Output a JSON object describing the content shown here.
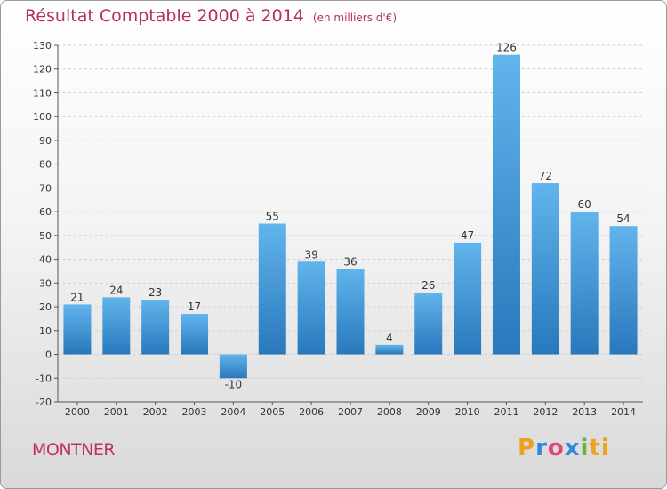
{
  "header": {
    "title": "Résultat Comptable 2000 à 2014",
    "unit": "(en milliers d'€)"
  },
  "footer": {
    "commune": "MONTNER",
    "logo_text": "Proxiti",
    "logo_letters": [
      "P",
      "r",
      "o",
      "x",
      "i",
      "ti"
    ]
  },
  "colors": {
    "title": "#b5305c",
    "bar_light": "#62b4ec",
    "bar_dark": "#2878bc",
    "grid": "#cfcfcf"
  },
  "chart_data": {
    "type": "bar",
    "title": "Résultat Comptable 2000 à 2014 (en milliers d'€)",
    "xlabel": "",
    "ylabel": "",
    "categories": [
      "2000",
      "2001",
      "2002",
      "2003",
      "2004",
      "2005",
      "2006",
      "2007",
      "2008",
      "2009",
      "2010",
      "2011",
      "2012",
      "2013",
      "2014"
    ],
    "values": [
      21,
      24,
      23,
      17,
      -10,
      55,
      39,
      36,
      4,
      26,
      47,
      126,
      72,
      60,
      54
    ],
    "ylim": [
      -20,
      130
    ],
    "yticks": [
      -20,
      -10,
      0,
      10,
      20,
      30,
      40,
      50,
      60,
      70,
      80,
      90,
      100,
      110,
      120,
      130
    ],
    "grid": "horizontal dashed",
    "legend": "none"
  }
}
